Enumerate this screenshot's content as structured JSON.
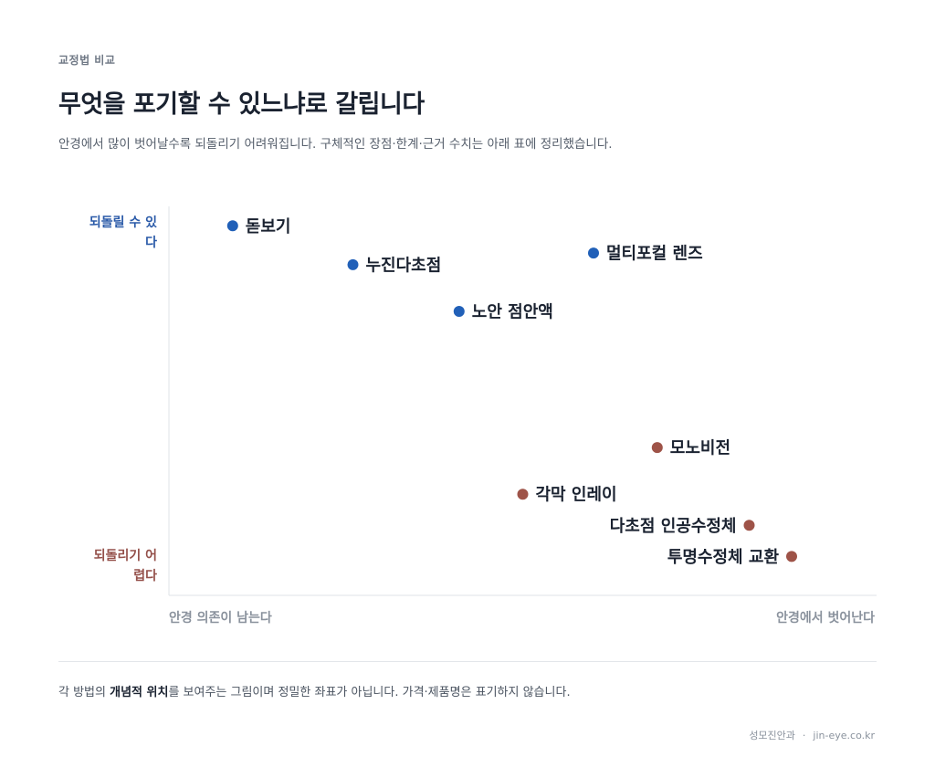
{
  "eyebrow": "교정법 비교",
  "title": "무엇을 포기할 수 있느냐로 갈립니다",
  "subtitle": "안경에서 많이 벗어날수록 되돌리기 어려워집니다. 구체적인 장점·한계·근거 수치는 아래 표에 정리했습니다.",
  "chart_data": {
    "type": "scatter",
    "y_top_label": "되돌릴 수 있다",
    "y_bottom_label": "되돌리기 어렵다",
    "xlabel_left": "안경 의존이 남는다",
    "xlabel_right": "안경에서 벗어난다",
    "xlim": [
      0,
      1
    ],
    "ylim": [
      0,
      1
    ],
    "grid": false,
    "series": [
      {
        "group": "reversible",
        "color": "#2160b8",
        "points": [
          {
            "label": "돋보기",
            "x": 0.09,
            "y": 0.95,
            "label_side": "right"
          },
          {
            "label": "누진다초점",
            "x": 0.26,
            "y": 0.85,
            "label_side": "right"
          },
          {
            "label": "멀티포컬 렌즈",
            "x": 0.6,
            "y": 0.88,
            "label_side": "right"
          },
          {
            "label": "노안 점안액",
            "x": 0.41,
            "y": 0.73,
            "label_side": "right"
          }
        ]
      },
      {
        "group": "irreversible",
        "color": "#9e5348",
        "points": [
          {
            "label": "모노비전",
            "x": 0.69,
            "y": 0.38,
            "label_side": "right"
          },
          {
            "label": "각막 인레이",
            "x": 0.5,
            "y": 0.26,
            "label_side": "right"
          },
          {
            "label": "다초점 인공수정체",
            "x": 0.82,
            "y": 0.18,
            "label_side": "left"
          },
          {
            "label": "투명수정체 교환",
            "x": 0.88,
            "y": 0.1,
            "label_side": "left"
          }
        ]
      }
    ]
  },
  "footnote": {
    "prefix": "각 방법의 ",
    "emphasis": "개념적 위치",
    "suffix": "를 보여주는 그림이며 정밀한 좌표가 아닙니다. 가격·제품명은 표기하지 않습니다."
  },
  "credit": {
    "clinic": "성모진안과",
    "separator": "·",
    "site": "jin-eye.co.kr"
  }
}
